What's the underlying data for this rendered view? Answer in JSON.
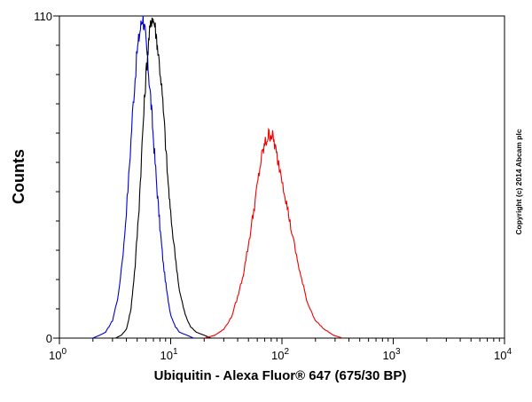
{
  "chart_data": {
    "type": "line",
    "title": "",
    "xlabel": "Ubiquitin - Alexa Fluor® 647 (675/30 BP)",
    "ylabel": "Counts",
    "x_scale": "log",
    "xlim": [
      1,
      10000
    ],
    "ylim": [
      0,
      110
    ],
    "x_ticks": [
      {
        "value": 1,
        "base": "10",
        "exp": "0"
      },
      {
        "value": 10,
        "base": "10",
        "exp": "1"
      },
      {
        "value": 100,
        "base": "10",
        "exp": "2"
      },
      {
        "value": 1000,
        "base": "10",
        "exp": "3"
      },
      {
        "value": 10000,
        "base": "10",
        "exp": "4"
      }
    ],
    "y_ticks": [
      {
        "value": 0,
        "label": "0"
      },
      {
        "value": 110,
        "label": "110"
      }
    ],
    "grid": false,
    "legend": "none",
    "series": [
      {
        "color": "#0000cc",
        "points": [
          [
            2.0,
            0
          ],
          [
            2.3,
            1
          ],
          [
            2.6,
            2
          ],
          [
            3.0,
            6
          ],
          [
            3.4,
            15
          ],
          [
            3.8,
            32
          ],
          [
            4.2,
            55
          ],
          [
            4.6,
            80
          ],
          [
            5.0,
            98
          ],
          [
            5.3,
            105
          ],
          [
            5.6,
            110
          ],
          [
            5.9,
            104
          ],
          [
            6.2,
            95
          ],
          [
            6.6,
            82
          ],
          [
            7.0,
            68
          ],
          [
            7.5,
            52
          ],
          [
            8.0,
            38
          ],
          [
            8.6,
            25
          ],
          [
            9.3,
            15
          ],
          [
            10.0,
            8
          ],
          [
            11.0,
            4
          ],
          [
            12.0,
            2
          ],
          [
            14.0,
            1
          ],
          [
            16.0,
            0
          ]
        ]
      },
      {
        "color": "#000000",
        "points": [
          [
            3.2,
            0
          ],
          [
            3.6,
            1
          ],
          [
            4.0,
            3
          ],
          [
            4.4,
            10
          ],
          [
            4.8,
            25
          ],
          [
            5.2,
            45
          ],
          [
            5.6,
            70
          ],
          [
            6.0,
            90
          ],
          [
            6.4,
            103
          ],
          [
            6.8,
            110
          ],
          [
            7.2,
            107
          ],
          [
            7.6,
            100
          ],
          [
            8.2,
            88
          ],
          [
            8.8,
            72
          ],
          [
            9.4,
            55
          ],
          [
            10.0,
            42
          ],
          [
            11.0,
            28
          ],
          [
            12.0,
            16
          ],
          [
            13.5,
            8
          ],
          [
            15.0,
            4
          ],
          [
            17.0,
            2
          ],
          [
            20.0,
            1
          ],
          [
            23.0,
            0
          ]
        ]
      },
      {
        "color": "#ee0000",
        "points": [
          [
            20,
            0
          ],
          [
            25,
            1
          ],
          [
            30,
            3
          ],
          [
            35,
            7
          ],
          [
            40,
            14
          ],
          [
            45,
            22
          ],
          [
            50,
            32
          ],
          [
            55,
            42
          ],
          [
            60,
            52
          ],
          [
            65,
            61
          ],
          [
            70,
            66
          ],
          [
            75,
            69
          ],
          [
            80,
            70
          ],
          [
            85,
            67
          ],
          [
            90,
            62
          ],
          [
            100,
            55
          ],
          [
            110,
            46
          ],
          [
            120,
            38
          ],
          [
            135,
            28
          ],
          [
            150,
            20
          ],
          [
            170,
            12
          ],
          [
            200,
            6
          ],
          [
            240,
            3
          ],
          [
            290,
            1
          ],
          [
            350,
            0
          ]
        ]
      }
    ]
  },
  "watermark": "Copyright (c) 2014 Abcam plc"
}
